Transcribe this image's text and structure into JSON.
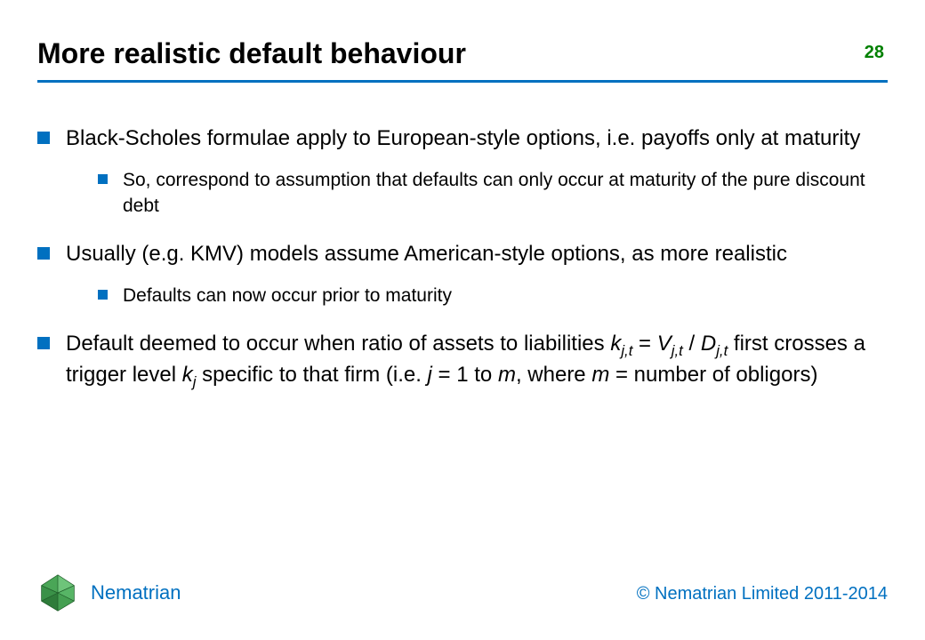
{
  "colors": {
    "accent": "#0070c0",
    "page_number": "#008000",
    "text": "#000000",
    "background": "#ffffff",
    "logo_base": "#2e8b3e",
    "logo_light": "#6ec47a"
  },
  "typography": {
    "font_family": "Arial, Helvetica, sans-serif",
    "title_fontsize_pt": 24,
    "title_fontweight": "bold",
    "body_fontsize_pt": 18,
    "sub_fontsize_pt": 16
  },
  "slide": {
    "title": "More realistic default behaviour",
    "page_number": "28"
  },
  "bullets": [
    {
      "text": "Black-Scholes formulae apply to European-style options, i.e. payoffs only at maturity",
      "sub": [
        "So, correspond to assumption that defaults can only occur at maturity of the pure discount debt"
      ]
    },
    {
      "text": "Usually (e.g. KMV) models assume American-style options, as more realistic",
      "sub": [
        "Defaults can now occur prior to maturity"
      ]
    },
    {
      "html": "Default deemed to occur when ratio of assets to liabilities <span class=\"ital\">k<span class=\"sub\">j,t</span></span> = <span class=\"ital\">V<span class=\"sub\">j,t</span></span> / <span class=\"ital\">D<span class=\"sub\">j,t</span></span> first crosses a trigger level <span class=\"ital\">k<span class=\"sub\">j</span></span> specific to that firm (i.e. <span class=\"ital\">j</span> = 1 to <span class=\"ital\">m</span>, where <span class=\"ital\">m</span> = number of obligors)",
      "text_plain": "Default deemed to occur when ratio of assets to liabilities k_{j,t} = V_{j,t} / D_{j,t} first crosses a trigger level k_j specific to that firm (i.e. j = 1 to m, where m = number of obligors)",
      "sub": []
    }
  ],
  "footer": {
    "brand": "Nematrian",
    "copyright": "© Nematrian Limited 2011-2014"
  }
}
